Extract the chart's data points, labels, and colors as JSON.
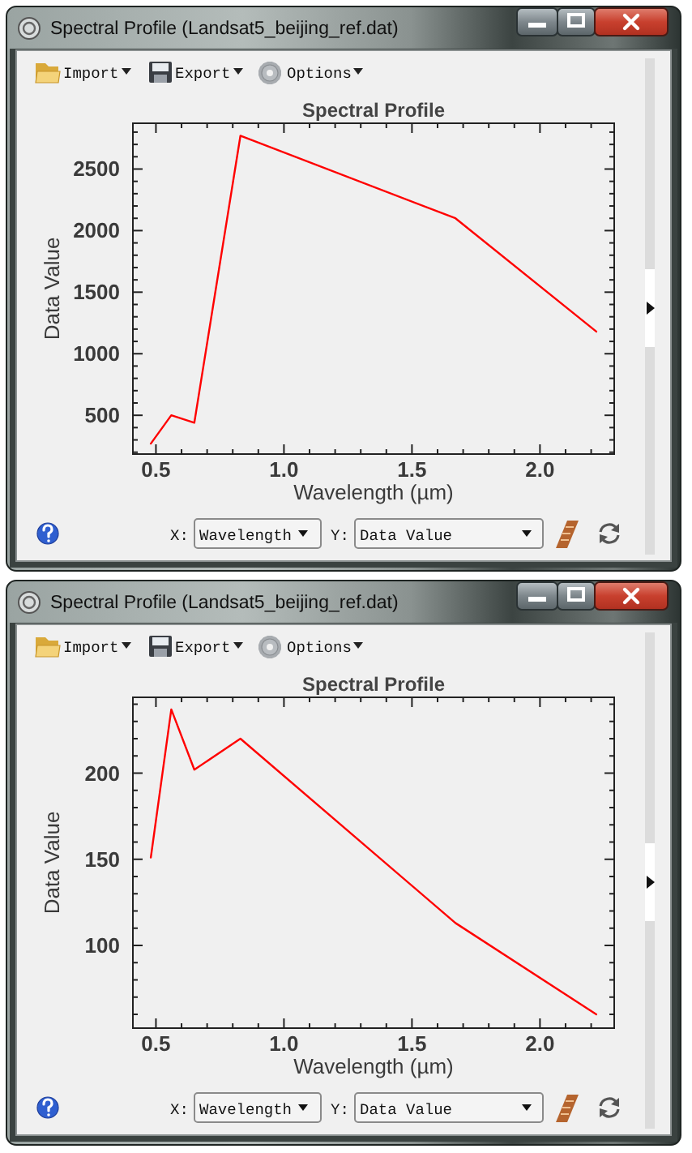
{
  "chart_data": [
    {
      "type": "line",
      "title": "Spectral Profile",
      "xlabel": "Wavelength (µm)",
      "ylabel": "Data Value",
      "x": [
        0.48,
        0.56,
        0.65,
        0.83,
        1.67,
        2.22
      ],
      "values": [
        270,
        500,
        440,
        2770,
        2100,
        1180
      ],
      "color": "#ff0000",
      "xlim": [
        0.41,
        2.29
      ],
      "ylim": [
        185,
        2872
      ],
      "xticks": [
        {
          "value": 0.5,
          "label": "0.5"
        },
        {
          "value": 0.6,
          "label": null
        },
        {
          "value": 0.7,
          "label": null
        },
        {
          "value": 0.8,
          "label": null
        },
        {
          "value": 0.9,
          "label": null
        },
        {
          "value": 1,
          "label": "1.0"
        },
        {
          "value": 1.1,
          "label": null
        },
        {
          "value": 1.2,
          "label": null
        },
        {
          "value": 1.3,
          "label": null
        },
        {
          "value": 1.4,
          "label": null
        },
        {
          "value": 1.5,
          "label": "1.5"
        },
        {
          "value": 1.6,
          "label": null
        },
        {
          "value": 1.7,
          "label": null
        },
        {
          "value": 1.8,
          "label": null
        },
        {
          "value": 1.9,
          "label": null
        },
        {
          "value": 2,
          "label": "2.0"
        },
        {
          "value": 2.1,
          "label": null
        },
        {
          "value": 2.2,
          "label": null
        }
      ],
      "yticks": [
        {
          "value": 200,
          "label": null
        },
        {
          "value": 300,
          "label": null
        },
        {
          "value": 400,
          "label": null
        },
        500,
        {
          "value": 600,
          "label": null
        },
        {
          "value": 700,
          "label": null
        },
        {
          "value": 800,
          "label": null
        },
        {
          "value": 900,
          "label": null
        },
        1000,
        {
          "value": 1100,
          "label": null
        },
        {
          "value": 1200,
          "label": null
        },
        {
          "value": 1300,
          "label": null
        },
        {
          "value": 1400,
          "label": null
        },
        1500,
        {
          "value": 1600,
          "label": null
        },
        {
          "value": 1700,
          "label": null
        },
        {
          "value": 1800,
          "label": null
        },
        {
          "value": 1900,
          "label": null
        },
        2000,
        {
          "value": 2100,
          "label": null
        },
        {
          "value": 2200,
          "label": null
        },
        {
          "value": 2300,
          "label": null
        },
        {
          "value": 2400,
          "label": null
        },
        2500,
        {
          "value": 2600,
          "label": null
        },
        {
          "value": 2700,
          "label": null
        },
        {
          "value": 2800,
          "label": null
        }
      ],
      "annotations": [
        "Spectral Profile (Landsat5_beijing_ref.dat)",
        "Import",
        "Export",
        "Options",
        "X:",
        "Wavelength",
        "Y:",
        "Data Value"
      ]
    },
    {
      "type": "line",
      "title": "Spectral Profile",
      "xlabel": "Wavelength (µm)",
      "ylabel": "Data Value",
      "x": [
        0.48,
        0.56,
        0.65,
        0.83,
        1.67,
        2.22
      ],
      "values": [
        151,
        237,
        202,
        220,
        113,
        60
      ],
      "color": "#ff0000",
      "xlim": [
        0.41,
        2.29
      ],
      "ylim": [
        52,
        244
      ],
      "xticks": [
        {
          "value": 0.5,
          "label": "0.5"
        },
        {
          "value": 0.6,
          "label": null
        },
        {
          "value": 0.7,
          "label": null
        },
        {
          "value": 0.8,
          "label": null
        },
        {
          "value": 0.9,
          "label": null
        },
        {
          "value": 1,
          "label": "1.0"
        },
        {
          "value": 1.1,
          "label": null
        },
        {
          "value": 1.2,
          "label": null
        },
        {
          "value": 1.3,
          "label": null
        },
        {
          "value": 1.4,
          "label": null
        },
        {
          "value": 1.5,
          "label": "1.5"
        },
        {
          "value": 1.6,
          "label": null
        },
        {
          "value": 1.7,
          "label": null
        },
        {
          "value": 1.8,
          "label": null
        },
        {
          "value": 1.9,
          "label": null
        },
        {
          "value": 2,
          "label": "2.0"
        },
        {
          "value": 2.1,
          "label": null
        },
        {
          "value": 2.2,
          "label": null
        }
      ],
      "yticks": [
        {
          "value": 60,
          "label": null
        },
        {
          "value": 70,
          "label": null
        },
        {
          "value": 80,
          "label": null
        },
        {
          "value": 90,
          "label": null
        },
        100,
        {
          "value": 110,
          "label": null
        },
        {
          "value": 120,
          "label": null
        },
        {
          "value": 130,
          "label": null
        },
        {
          "value": 140,
          "label": null
        },
        150,
        {
          "value": 160,
          "label": null
        },
        {
          "value": 170,
          "label": null
        },
        {
          "value": 180,
          "label": null
        },
        {
          "value": 190,
          "label": null
        },
        200,
        {
          "value": 210,
          "label": null
        },
        {
          "value": 220,
          "label": null
        },
        {
          "value": 230,
          "label": null
        },
        {
          "value": 240,
          "label": null
        }
      ],
      "annotations": [
        "Spectral Profile (Landsat5_beijing_ref.dat)",
        "Import",
        "Export",
        "Options",
        "X:",
        "Wavelength",
        "Y:",
        "Data Value"
      ]
    }
  ]
}
